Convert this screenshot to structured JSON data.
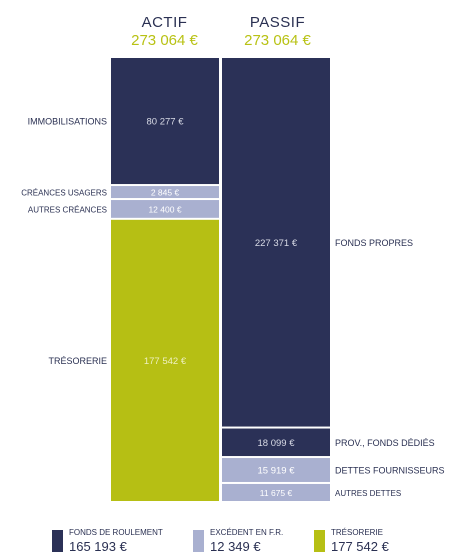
{
  "headers": {
    "actif": {
      "title": "ACTIF",
      "total": "273 064 €"
    },
    "passif": {
      "title": "PASSIF",
      "total": "273 064 €"
    }
  },
  "chart_data": {
    "type": "bar",
    "subtype": "stacked balance sheet",
    "unit": "€",
    "columns": [
      {
        "name": "ACTIF",
        "total": 273064,
        "segments": [
          {
            "label": "IMMOBILISATIONS",
            "value": 80277,
            "value_label": "80 277 €",
            "color": "#2b3157",
            "text_color": "#d9dbe6"
          },
          {
            "label": "CRÉANCES USAGERS",
            "value": 2845,
            "value_label": "2 845 €",
            "color": "#a9b0d0",
            "text_color": "#ffffff"
          },
          {
            "label": "AUTRES CRÉANCES",
            "value": 12400,
            "value_label": "12 400 €",
            "color": "#a9b0d0",
            "text_color": "#ffffff"
          },
          {
            "label": "TRÉSORERIE",
            "value": 177542,
            "value_label": "177 542 €",
            "color": "#b6bf14",
            "text_color": "#eef0c0"
          }
        ]
      },
      {
        "name": "PASSIF",
        "total": 273064,
        "segments": [
          {
            "label": "FONDS PROPRES",
            "value": 227371,
            "value_label": "227 371 €",
            "color": "#2b3157",
            "text_color": "#d9dbe6"
          },
          {
            "label": "PROV., FONDS DÉDIÉS",
            "value": 18099,
            "value_label": "18 099 €",
            "color": "#2b3157",
            "text_color": "#d9dbe6"
          },
          {
            "label": "DETTES FOURNISSEURS",
            "value": 15919,
            "value_label": "15 919 €",
            "color": "#a9b0d0",
            "text_color": "#ffffff"
          },
          {
            "label": "AUTRES DETTES",
            "value": 11675,
            "value_label": "11 675 €",
            "color": "#a9b0d0",
            "text_color": "#ffffff"
          }
        ]
      }
    ],
    "legend": [
      {
        "label": "FONDS DE ROULEMENT",
        "value": 165193,
        "value_label": "165 193 €",
        "color": "#2b3157"
      },
      {
        "label": "EXCÉDENT EN F.R.",
        "value": 12349,
        "value_label": "12 349 €",
        "color": "#a9b0d0"
      },
      {
        "label": "TRÉSORERIE",
        "value": 177542,
        "value_label": "177 542 €",
        "color": "#b6bf14"
      }
    ]
  }
}
